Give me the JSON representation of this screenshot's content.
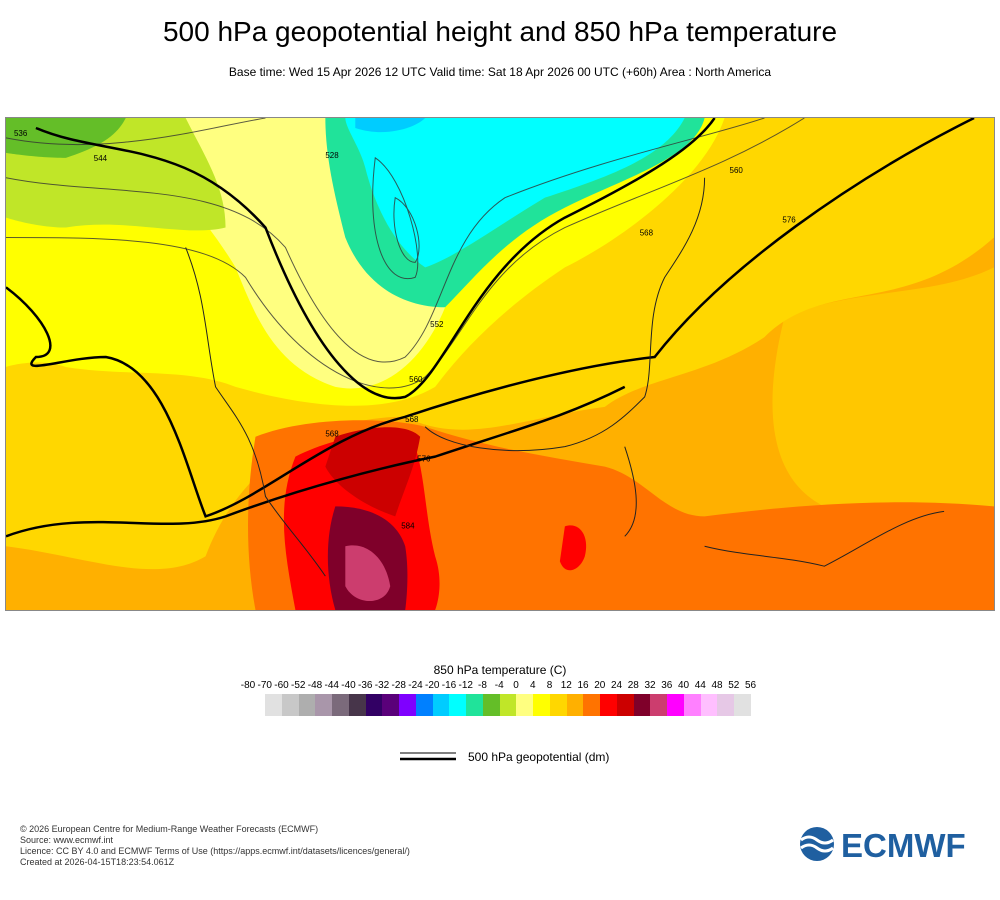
{
  "title": "500 hPa geopotential height and 850 hPa temperature",
  "subtitle": "Base time: Wed 15 Apr 2026 12 UTC Valid time: Sat 18 Apr 2026 00 UTC (+60h) Area : North America",
  "chart_data": {
    "type": "heatmap",
    "colorbar": {
      "title": "850 hPa temperature (C)",
      "ticks": [
        "-80",
        "-70",
        "-60",
        "-52",
        "-48",
        "-44",
        "-40",
        "-36",
        "-32",
        "-28",
        "-24",
        "-20",
        "-16",
        "-12",
        "-8",
        "-4",
        "0",
        "4",
        "8",
        "12",
        "16",
        "20",
        "24",
        "28",
        "32",
        "36",
        "40",
        "44",
        "48",
        "52",
        "56"
      ],
      "colors": [
        "#e1e1e1",
        "#c8c8c8",
        "#aeaeae",
        "#a996aa",
        "#7b6a7b",
        "#47354a",
        "#320064",
        "#5a007a",
        "#7f00ff",
        "#0080ff",
        "#00ccff",
        "#00ffff",
        "#20e39a",
        "#64be28",
        "#c0e628",
        "#ffff80",
        "#ffff00",
        "#ffd700",
        "#ffb000",
        "#ff7300",
        "#ff0000",
        "#cc0000",
        "#7f002a",
        "#cc3d6e",
        "#ff00ff",
        "#ff80ff",
        "#ffbfff",
        "#e6c8e6",
        "#e1e1e1"
      ]
    },
    "contour_legend": "500 hPa geopotential (dm)",
    "contour_labels": [
      "552",
      "560",
      "544",
      "568",
      "576",
      "584",
      "536",
      "528"
    ]
  },
  "footer": [
    "© 2026 European Centre for Medium-Range Weather Forecasts (ECMWF)",
    "Source: www.ecmwf.int",
    "Licence: CC BY 4.0 and ECMWF Terms of Use (https://apps.ecmwf.int/datasets/licences/general/)",
    "Created at 2026-04-15T18:23:54.061Z"
  ],
  "logo": "ECMWF"
}
